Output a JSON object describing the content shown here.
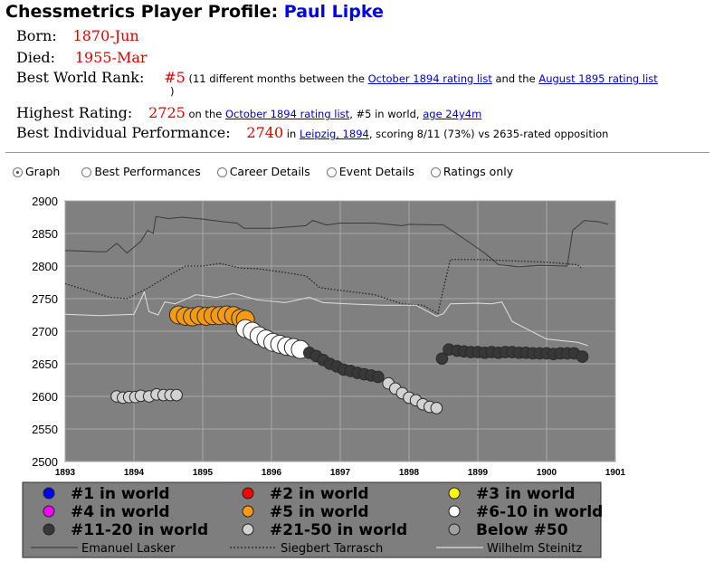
{
  "header": {
    "title_prefix": "Chessmetrics Player Profile: ",
    "player_name": "Paul Lipke"
  },
  "profile": {
    "born_label": "Born:",
    "born": "1870-Jun",
    "died_label": "Died:",
    "died": "1955-Mar",
    "best_rank_label": "Best World Rank:",
    "best_rank": "#5",
    "best_rank_note_1": " (11 different months between the ",
    "best_rank_link_1": "October 1894 rating list",
    "best_rank_note_2": " and the ",
    "best_rank_link_2": "August 1895 rating list",
    "best_rank_note_3": ")",
    "highest_label": "Highest Rating:",
    "highest": "2725",
    "highest_note_1": " on the ",
    "highest_link": "October 1894 rating list",
    "highest_note_2": ", #5 in world, ",
    "highest_age": "age 24y4m",
    "perf_label": "Best Individual Performance:",
    "perf": "2740",
    "perf_note_1": " in ",
    "perf_link": "Leipzig, 1894",
    "perf_note_2": ", scoring 8/11 (73%) vs 2635-rated opposition"
  },
  "views": [
    {
      "label": "Graph",
      "selected": true
    },
    {
      "label": "Best Performances",
      "selected": false
    },
    {
      "label": "Career Details",
      "selected": false
    },
    {
      "label": "Event Details",
      "selected": false
    },
    {
      "label": "Ratings only",
      "selected": false
    }
  ],
  "colors": {
    "plot_bg": "#808080",
    "legend_bg": "#7e7e7e",
    "name_blue": "#0000ee",
    "value_red": "#dd0000",
    "rank5": "#f59a17",
    "rank6_10": "#ffffff",
    "rank11_20": "#383838",
    "rank21_50": "#d2d2d2"
  },
  "chart_data": {
    "type": "scatter",
    "xlim": [
      1893,
      1901
    ],
    "ylim": [
      2500,
      2900
    ],
    "xticks": [
      "1893",
      "1894",
      "1895",
      "1896",
      "1897",
      "1898",
      "1899",
      "1900",
      "1901"
    ],
    "yticks": [
      "2500",
      "2550",
      "2600",
      "2650",
      "2700",
      "2750",
      "2800",
      "2850",
      "2900"
    ],
    "grid": true,
    "legend": [
      {
        "label": "#1 in world",
        "color": "#0000ff",
        "kind": "dot"
      },
      {
        "label": "#2 in world",
        "color": "#ff0000",
        "kind": "dot"
      },
      {
        "label": "#3 in world",
        "color": "#ffff00",
        "kind": "dot"
      },
      {
        "label": "#4 in world",
        "color": "#ff00ff",
        "kind": "dot"
      },
      {
        "label": "#5 in world",
        "color": "#f59a17",
        "kind": "dot"
      },
      {
        "label": "#6-10 in world",
        "color": "#ffffff",
        "kind": "dot"
      },
      {
        "label": "#11-20 in world",
        "color": "#383838",
        "kind": "dot"
      },
      {
        "label": "#21-50 in world",
        "color": "#d2d2d2",
        "kind": "dot"
      },
      {
        "label": "Below #50",
        "color": "#a0a0a0",
        "kind": "dot"
      },
      {
        "label": "Emanuel Lasker",
        "color": "#404040",
        "kind": "solid"
      },
      {
        "label": "Siegbert Tarrasch",
        "color": "#202020",
        "kind": "dotted"
      },
      {
        "label": "Wilhelm Steinitz",
        "color": "#dcdcdc",
        "kind": "solid"
      }
    ],
    "players": [
      {
        "x": [
          1893,
          1893.5,
          1893.6,
          1893.75,
          1893.9,
          1894.1,
          1894.2,
          1894.28,
          1894.32,
          1894.5,
          1894.7,
          1895.0,
          1895.3,
          1895.5,
          1895.6,
          1896.0,
          1896.5,
          1896.6,
          1896.8,
          1897.0,
          1897.5,
          1897.9,
          1898.0,
          1898.5,
          1898.8,
          1899.1,
          1899.3,
          1899.6,
          1899.9,
          1900.3,
          1900.38,
          1900.55,
          1900.75,
          1900.9
        ],
        "y": [
          2824,
          2822,
          2822,
          2835,
          2820,
          2838,
          2855,
          2850,
          2876,
          2873,
          2875,
          2872,
          2868,
          2866,
          2858,
          2858,
          2862,
          2870,
          2863,
          2866,
          2866,
          2862,
          2864,
          2863,
          2842,
          2820,
          2802,
          2799,
          2801,
          2800,
          2855,
          2870,
          2868,
          2864
        ]
      },
      {
        "x": [
          1893,
          1893.4,
          1893.65,
          1893.9,
          1894.2,
          1894.45,
          1894.75,
          1895.0,
          1895.25,
          1895.55,
          1895.8,
          1896.2,
          1896.5,
          1896.7,
          1896.9,
          1897.2,
          1897.5,
          1897.9,
          1898.2,
          1898.42,
          1898.5,
          1898.6,
          1899.0,
          1899.5,
          1900.0,
          1900.45,
          1900.5
        ],
        "y": [
          2773,
          2760,
          2752,
          2750,
          2766,
          2782,
          2800,
          2800,
          2804,
          2797,
          2796,
          2790,
          2785,
          2767,
          2764,
          2760,
          2756,
          2742,
          2740,
          2727,
          2765,
          2810,
          2810,
          2808,
          2806,
          2802,
          2797
        ]
      },
      {
        "x": [
          1893,
          1893.5,
          1894.0,
          1894.15,
          1894.22,
          1894.35,
          1894.45,
          1894.6,
          1894.9,
          1895.2,
          1895.45,
          1895.8,
          1896.2,
          1896.55,
          1896.75,
          1897.1,
          1897.6,
          1898.1,
          1898.4,
          1898.5,
          1898.6,
          1899.0,
          1899.2,
          1899.35,
          1899.5,
          1900.0,
          1900.45,
          1900.6
        ],
        "y": [
          2726,
          2724,
          2726,
          2760,
          2730,
          2725,
          2745,
          2742,
          2756,
          2752,
          2758,
          2748,
          2744,
          2752,
          2744,
          2742,
          2740,
          2740,
          2723,
          2727,
          2742,
          2743,
          2742,
          2745,
          2715,
          2688,
          2683,
          2678
        ]
      }
    ],
    "series": [
      {
        "rank_class": "#21-50 in world",
        "x": [
          1893.75,
          1893.84,
          1893.93,
          1894.02,
          1894.1,
          1894.22,
          1894.33,
          1894.43,
          1894.53,
          1894.62
        ],
        "y": [
          2600,
          2598,
          2599,
          2599,
          2601,
          2600,
          2603,
          2602,
          2602,
          2602
        ]
      },
      {
        "rank_class": "#5 in world",
        "x": [
          1894.65,
          1894.75,
          1894.85,
          1894.95,
          1895.05,
          1895.15,
          1895.25,
          1895.35,
          1895.45,
          1895.55,
          1895.62
        ],
        "y": [
          2725,
          2723,
          2722,
          2724,
          2723,
          2724,
          2724,
          2725,
          2724,
          2720,
          2718
        ]
      },
      {
        "rank_class": "#6-10 in world",
        "x": [
          1895.62,
          1895.72,
          1895.82,
          1895.92,
          1896.02,
          1896.12,
          1896.22,
          1896.32,
          1896.42
        ],
        "y": [
          2704,
          2700,
          2693,
          2688,
          2683,
          2680,
          2677,
          2675,
          2672
        ]
      },
      {
        "rank_class": "#11-20 in world",
        "x": [
          1896.55,
          1896.65,
          1896.75,
          1896.85,
          1896.95,
          1897.05,
          1897.15,
          1897.25,
          1897.35,
          1897.45,
          1897.55
        ],
        "y": [
          2667,
          2662,
          2656,
          2650,
          2646,
          2641,
          2639,
          2636,
          2634,
          2632,
          2630
        ]
      },
      {
        "rank_class": "#21-50 in world",
        "x": [
          1897.7,
          1897.8,
          1897.9,
          1898.0,
          1898.1,
          1898.2,
          1898.3,
          1898.4
        ],
        "y": [
          2620,
          2612,
          2605,
          2598,
          2594,
          2588,
          2584,
          2582
        ]
      },
      {
        "rank_class": "#11-20 in world",
        "x": [
          1898.48,
          1898.58,
          1898.7,
          1898.8,
          1898.9,
          1899.0,
          1899.1,
          1899.2,
          1899.3,
          1899.4,
          1899.5,
          1899.6,
          1899.7,
          1899.8,
          1899.9,
          1900.0,
          1900.1,
          1900.2,
          1900.3,
          1900.4,
          1900.52
        ],
        "y": [
          2658,
          2672,
          2670,
          2669,
          2668,
          2668,
          2667,
          2668,
          2667,
          2668,
          2668,
          2667,
          2667,
          2666,
          2666,
          2666,
          2665,
          2666,
          2666,
          2666,
          2661
        ]
      }
    ]
  }
}
